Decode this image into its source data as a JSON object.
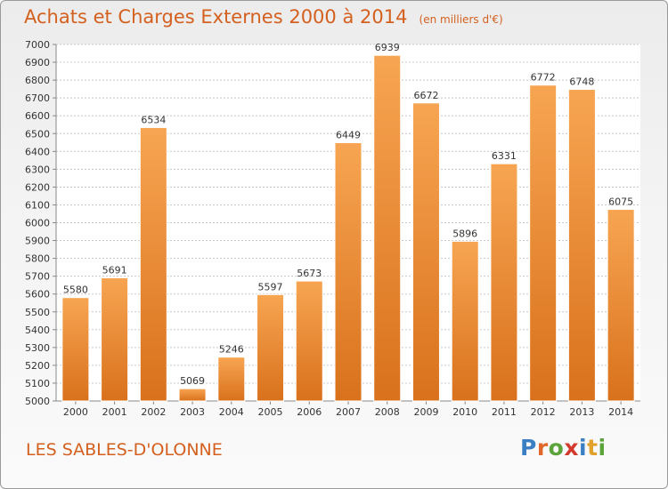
{
  "header": {
    "title": "Achats et Charges Externes 2000 à 2014",
    "subtitle": "(en milliers d'€)"
  },
  "footer": {
    "commune": "LES SABLES-D'OLONNE",
    "logo_text": "Proxiti",
    "logo_colors": [
      "#3a7fc4",
      "#e2672a",
      "#5ba33a",
      "#d23a2e",
      "#3a7fc4",
      "#e2a12a",
      "#5ba33a"
    ]
  },
  "colors": {
    "bar_light": "#f7a552",
    "bar_dark": "#d9711c",
    "title": "#d4601f"
  },
  "chart_data": {
    "type": "bar",
    "categories": [
      "2000",
      "2001",
      "2002",
      "2003",
      "2004",
      "2005",
      "2006",
      "2007",
      "2008",
      "2009",
      "2010",
      "2011",
      "2012",
      "2013",
      "2014"
    ],
    "values": [
      5580,
      5691,
      6534,
      5069,
      5246,
      5597,
      5673,
      6449,
      6939,
      6672,
      5896,
      6331,
      6772,
      6748,
      6075
    ],
    "ylim": [
      5000,
      7000
    ],
    "ytick_step": 100,
    "grid": true
  }
}
